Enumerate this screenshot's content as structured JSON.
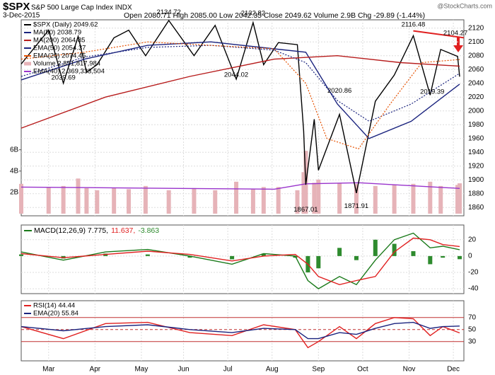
{
  "header": {
    "symbol": "$SPX",
    "name": "S&P 500 Large Cap Index INDX",
    "date": "3-Dec-2015",
    "quote": "Open 2080.71  High 2085.00  Low 2042.35  Close 2049.62  Volume 2.9B  Chg -29.89 (-1.44%)",
    "watermark": "@StockCharts.com"
  },
  "chart_data": [
    {
      "type": "line",
      "xlim": [
        0,
        210
      ],
      "xticks": [
        {
          "value": 13,
          "label": "Mar"
        },
        {
          "value": 35,
          "label": "Apr"
        },
        {
          "value": 57,
          "label": "May"
        },
        {
          "value": 77,
          "label": "Jun"
        },
        {
          "value": 98,
          "label": "Jul"
        },
        {
          "value": 119,
          "label": "Aug"
        },
        {
          "value": 141,
          "label": "Sep"
        },
        {
          "value": 162,
          "label": "Oct"
        },
        {
          "value": 184,
          "label": "Nov"
        },
        {
          "value": 205,
          "label": "Dec"
        }
      ],
      "ylim": [
        1848,
        2132
      ],
      "yticks": [
        1860,
        1880,
        1900,
        1920,
        1940,
        1960,
        1980,
        2000,
        2020,
        2040,
        2060,
        2080,
        2100,
        2120
      ],
      "y2lim": [
        -0.2,
        18.2
      ],
      "y2ticks": [
        {
          "value": 2,
          "label": "2B"
        },
        {
          "value": 4,
          "label": "4B"
        },
        {
          "value": 6,
          "label": "6B"
        }
      ],
      "x": [
        0,
        13,
        20,
        27,
        31,
        36,
        44,
        51,
        59,
        70,
        82,
        92,
        102,
        110,
        115,
        122,
        131,
        134,
        135,
        139,
        141,
        151,
        159,
        168,
        177,
        186,
        194,
        199,
        207,
        208
      ],
      "series": [
        {
          "name": "Volume 2,851,817,984",
          "type": "bar",
          "axis": "y2",
          "color": "#e6b3b8",
          "values": [
            2.8,
            2.5,
            2.6,
            3.3,
            2.4,
            2.2,
            2.4,
            2.3,
            2.6,
            2.2,
            2.4,
            2.2,
            3.0,
            2.3,
            2.5,
            2.5,
            2.2,
            3.9,
            5.9,
            2.9,
            3.2,
            2.9,
            2.8,
            2.6,
            2.7,
            2.8,
            3.0,
            2.6,
            2.7,
            2.85
          ]
        },
        {
          "name": "EMA(40) 2,369,333,504",
          "axis": "y2",
          "color": "#9933cc",
          "x": [
            0,
            60,
            120,
            135,
            160,
            208
          ],
          "values": [
            2.5,
            2.4,
            2.3,
            2.8,
            2.9,
            2.37
          ]
        },
        {
          "name": "$SPX (Daily) 2049.62",
          "color": "#000000",
          "values": [
            2068,
            2117,
            2040,
            2108,
            2056,
            2067,
            2106,
            2117,
            2080,
            2131,
            2080,
            2124,
            2046,
            2128,
            2067,
            2099,
            2096,
            1971,
            1893,
            1988,
            1914,
            1995,
            1881,
            2014,
            2052,
            2109,
            2023,
            2089,
            2079,
            2049.62
          ]
        },
        {
          "name": "MA(50) 2038.79",
          "color": "#1a237e",
          "x": [
            0,
            30,
            60,
            90,
            120,
            135,
            150,
            165,
            185,
            208
          ],
          "values": [
            2045,
            2075,
            2095,
            2100,
            2090,
            2085,
            2010,
            1960,
            1985,
            2038.79
          ]
        },
        {
          "name": "MA(200) 2064.85",
          "color": "#b71c1c",
          "x": [
            0,
            40,
            80,
            120,
            150,
            180,
            208
          ],
          "values": [
            1975,
            2020,
            2050,
            2075,
            2080,
            2070,
            2064.85
          ]
        },
        {
          "name": "EMA(50) 2054.37",
          "color": "#1a237e",
          "style": "dotted",
          "x": [
            0,
            30,
            60,
            90,
            120,
            135,
            150,
            165,
            185,
            208
          ],
          "values": [
            2050,
            2078,
            2092,
            2095,
            2088,
            2070,
            2015,
            1985,
            2010,
            2054.37
          ]
        },
        {
          "name": "EMA(20) 2074.45",
          "color": "#e65100",
          "style": "dotted",
          "x": [
            0,
            30,
            60,
            90,
            120,
            135,
            145,
            160,
            175,
            190,
            208
          ],
          "values": [
            2075,
            2085,
            2100,
            2095,
            2090,
            2040,
            1960,
            1945,
            2010,
            2070,
            2074.45
          ]
        }
      ],
      "annotations": [
        {
          "x": 20,
          "value": 2039.69
        },
        {
          "x": 70,
          "value": 2134.72
        },
        {
          "x": 102,
          "value": 2044.02
        },
        {
          "x": 110,
          "value": 2132.82
        },
        {
          "x": 135,
          "value": 1867.01
        },
        {
          "x": 151,
          "value": 2020.86
        },
        {
          "x": 159,
          "value": 1871.91
        },
        {
          "x": 186,
          "value": 2116.48
        },
        {
          "x": 195,
          "value": 2019.39
        },
        {
          "x": 206,
          "value": 2104.27
        }
      ],
      "trendline": {
        "color": "#e02020",
        "x": [
          186,
          210
        ],
        "values": [
          2116,
          2106
        ]
      }
    },
    {
      "type": "line",
      "legend": "inline",
      "xlim": [
        0,
        210
      ],
      "xticks": [
        {
          "value": 13,
          "label": "Mar"
        },
        {
          "value": 35,
          "label": "Apr"
        },
        {
          "value": 57,
          "label": "May"
        },
        {
          "value": 77,
          "label": "Jun"
        },
        {
          "value": 98,
          "label": "Jul"
        },
        {
          "value": 119,
          "label": "Aug"
        },
        {
          "value": 141,
          "label": "Sep"
        },
        {
          "value": 162,
          "label": "Oct"
        },
        {
          "value": 184,
          "label": "Nov"
        },
        {
          "value": 205,
          "label": "Dec"
        }
      ],
      "ylim": [
        -46,
        38
      ],
      "yticks": [
        -40,
        -20,
        0,
        20
      ],
      "x": [
        0,
        20,
        40,
        60,
        80,
        100,
        115,
        130,
        136,
        141,
        151,
        159,
        168,
        177,
        186,
        194,
        200,
        208
      ],
      "series": [
        {
          "name": "-3.863",
          "type": "bar",
          "color": "#2e8b2e",
          "values": [
            2,
            -3,
            3,
            2,
            -2,
            -4,
            3,
            -2,
            -20,
            -15,
            10,
            -5,
            20,
            15,
            6,
            -10,
            -2,
            -3.863
          ]
        },
        {
          "name": "MACD(12,26,9) 7.775,",
          "color": "#1a7a1a",
          "values": [
            5,
            -5,
            5,
            8,
            0,
            -10,
            3,
            0,
            -30,
            -40,
            -25,
            -35,
            -5,
            20,
            28,
            10,
            12,
            7.775
          ]
        },
        {
          "name": "11.637,",
          "color": "#e02020",
          "values": [
            3,
            -2,
            2,
            6,
            2,
            -6,
            0,
            2,
            -10,
            -25,
            -35,
            -30,
            -25,
            5,
            22,
            20,
            14,
            11.637
          ]
        }
      ]
    },
    {
      "type": "line",
      "gridcolor": "#c03030",
      "xlim": [
        0,
        210
      ],
      "xticks": [
        {
          "value": 13,
          "label": "Mar"
        },
        {
          "value": 35,
          "label": "Apr"
        },
        {
          "value": 57,
          "label": "May"
        },
        {
          "value": 77,
          "label": "Jun"
        },
        {
          "value": 98,
          "label": "Jul"
        },
        {
          "value": 119,
          "label": "Aug"
        },
        {
          "value": 141,
          "label": "Sep"
        },
        {
          "value": 162,
          "label": "Oct"
        },
        {
          "value": 184,
          "label": "Nov"
        },
        {
          "value": 205,
          "label": "Dec"
        }
      ],
      "ylim": [
        -2,
        98
      ],
      "yticks": [
        30,
        50,
        70
      ],
      "x": [
        0,
        20,
        40,
        60,
        80,
        100,
        115,
        130,
        136,
        141,
        151,
        159,
        168,
        177,
        186,
        194,
        200,
        208
      ],
      "series": [
        {
          "name": "RSI(14) 44.44",
          "color": "#e02020",
          "values": [
            55,
            35,
            60,
            62,
            45,
            40,
            58,
            50,
            20,
            30,
            55,
            35,
            60,
            70,
            68,
            40,
            55,
            44.44
          ]
        },
        {
          "name": "EMA(20) 55.84",
          "color": "#1a237e",
          "values": [
            55,
            48,
            55,
            58,
            50,
            45,
            52,
            50,
            35,
            35,
            45,
            42,
            52,
            60,
            62,
            52,
            55,
            55.84
          ]
        }
      ]
    }
  ]
}
